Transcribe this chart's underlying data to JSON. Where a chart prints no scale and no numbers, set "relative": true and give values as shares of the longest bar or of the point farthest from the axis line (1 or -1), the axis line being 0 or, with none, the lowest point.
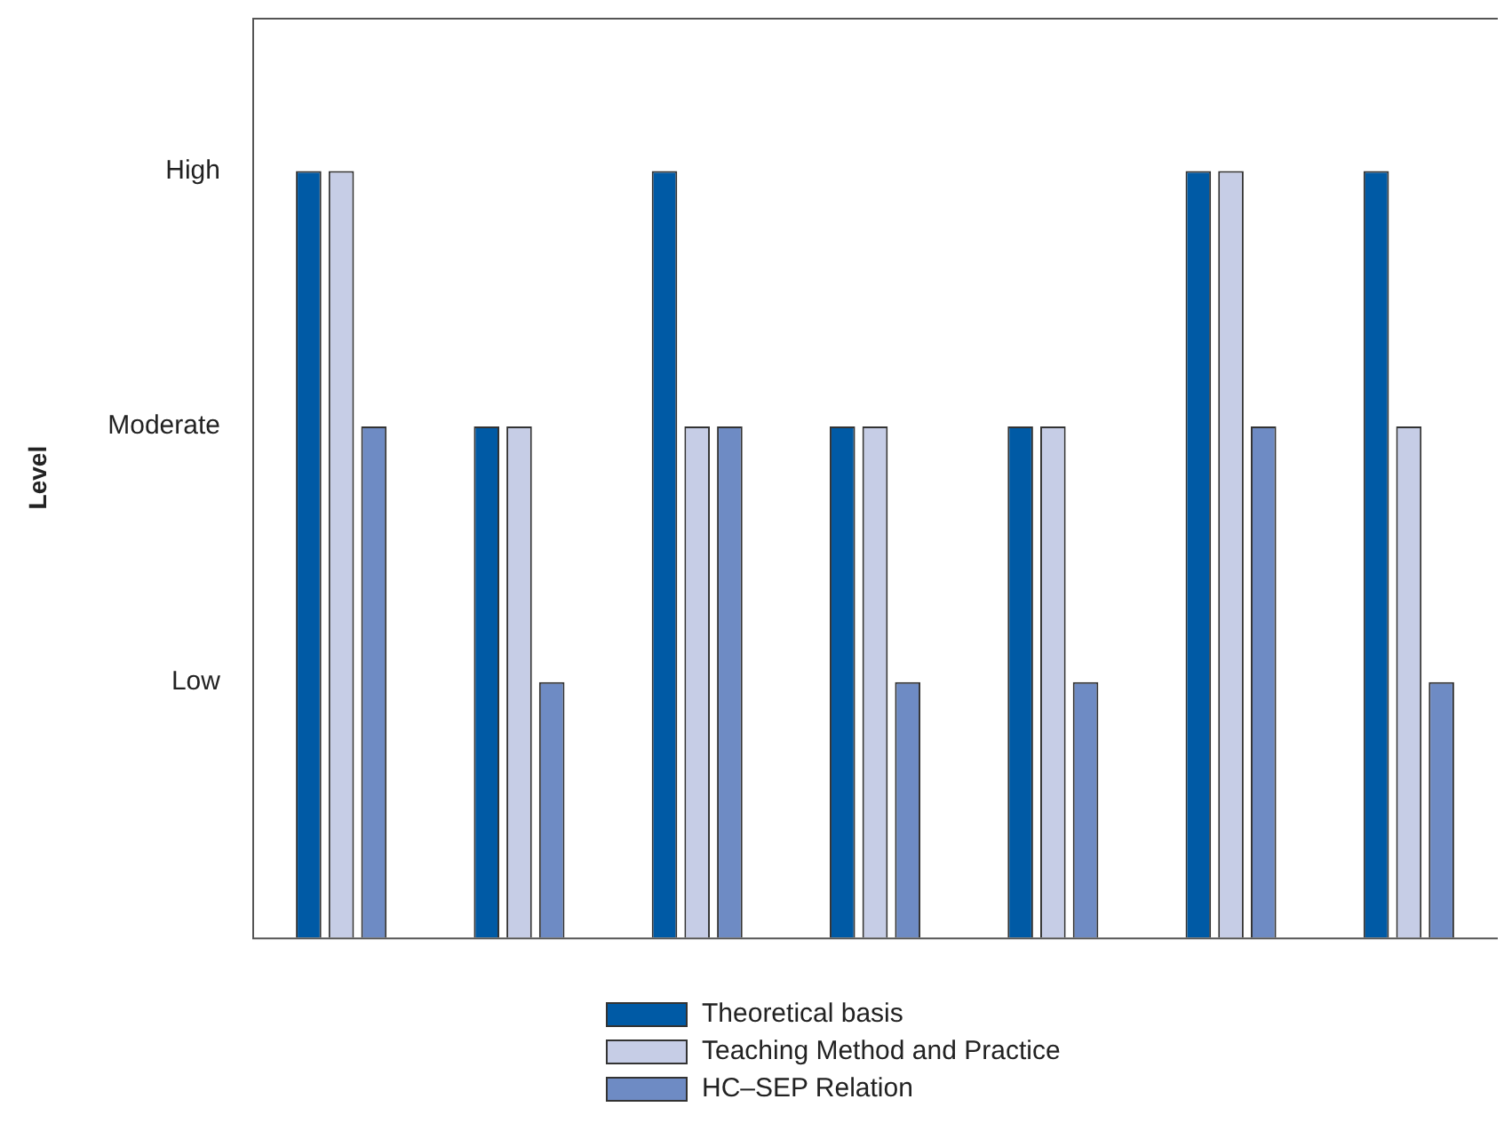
{
  "chart_data": {
    "type": "bar",
    "relative": true,
    "categories": [
      null,
      null,
      null,
      null,
      null,
      null,
      null
    ],
    "series": [
      {
        "name": "Theoretical basis",
        "color": "#005aa5",
        "values": [
          1,
          0.6667,
          1,
          0.6667,
          0.6667,
          1,
          1
        ]
      },
      {
        "name": "Teaching Method and Practice",
        "color": "#c6cde6",
        "values": [
          1,
          0.6667,
          0.6667,
          0.6667,
          0.6667,
          1,
          0.6667
        ]
      },
      {
        "name": "HC–SEP Relation",
        "color": "#6e8bc4",
        "values": [
          0.6667,
          0.3333,
          0.6667,
          0.3333,
          0.3333,
          0.6667,
          0.3333
        ]
      }
    ],
    "annotations": [
      "Level",
      "High",
      "Moderate",
      "Low"
    ],
    "grid": false,
    "legend": "bottom"
  }
}
